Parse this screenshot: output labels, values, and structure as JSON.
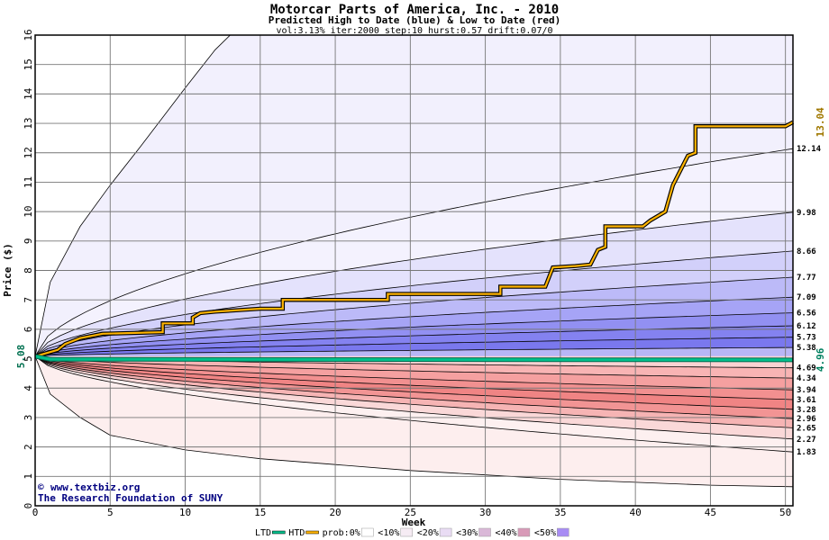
{
  "chart_data": {
    "type": "area",
    "title": "Motorcar Parts of America, Inc. - 2010",
    "subtitle": "Predicted High to Date (blue) &  Low to Date (red)",
    "params": "vol:3.13% iter:2000 step:10 hurst:0.57 drift:0.07/0",
    "xlabel": "Week",
    "ylabel": "Price ($)",
    "xlim": [
      0,
      50.5
    ],
    "ylim": [
      0,
      16
    ],
    "xticks": [
      0,
      5,
      10,
      15,
      20,
      25,
      30,
      35,
      40,
      45,
      50
    ],
    "yticks": [
      0,
      1,
      2,
      3,
      4,
      5,
      6,
      7,
      8,
      9,
      10,
      11,
      12,
      13,
      14,
      15,
      16
    ],
    "grid": true,
    "start_price": 5.08,
    "start_label": "5.08",
    "ltd_end_label": "4.96",
    "htd_end_label": "13.04",
    "right_labels": [
      "12.14",
      "9.98",
      "8.66",
      "7.77",
      "7.09",
      "6.56",
      "6.12",
      "5.73",
      "5.38",
      "4.69",
      "4.34",
      "3.94",
      "3.61",
      "3.28",
      "2.96",
      "2.65",
      "2.27",
      "1.83"
    ],
    "high_bands": [
      {
        "end": 12.14,
        "outer": true
      },
      {
        "end": 9.98
      },
      {
        "end": 8.66
      },
      {
        "end": 7.77
      },
      {
        "end": 7.09
      },
      {
        "end": 6.56
      },
      {
        "end": 6.12
      },
      {
        "end": 5.73
      },
      {
        "end": 5.38
      }
    ],
    "low_bands": [
      {
        "end": 4.69
      },
      {
        "end": 4.34
      },
      {
        "end": 3.94
      },
      {
        "end": 3.61
      },
      {
        "end": 3.28
      },
      {
        "end": 2.96
      },
      {
        "end": 2.65
      },
      {
        "end": 2.27
      },
      {
        "end": 1.83
      }
    ],
    "extreme_high": [
      [
        0,
        5.08
      ],
      [
        1,
        7.6
      ],
      [
        3,
        9.5
      ],
      [
        5,
        10.9
      ],
      [
        7,
        12.2
      ],
      [
        10,
        14.2
      ],
      [
        12,
        15.5
      ],
      [
        13,
        16
      ]
    ],
    "extreme_low": [
      [
        0,
        5.08
      ],
      [
        1,
        3.8
      ],
      [
        3,
        3.0
      ],
      [
        5,
        2.4
      ],
      [
        10,
        1.9
      ],
      [
        15,
        1.6
      ],
      [
        20,
        1.4
      ],
      [
        25,
        1.2
      ],
      [
        30,
        1.05
      ],
      [
        35,
        0.9
      ],
      [
        40,
        0.8
      ],
      [
        45,
        0.7
      ],
      [
        50.5,
        0.65
      ]
    ],
    "series": [
      {
        "name": "HTD",
        "color": "#ffb400",
        "points": [
          [
            0,
            5.08
          ],
          [
            1.5,
            5.3
          ],
          [
            2,
            5.5
          ],
          [
            3,
            5.7
          ],
          [
            4.5,
            5.85
          ],
          [
            8.5,
            5.9
          ],
          [
            8.5,
            6.2
          ],
          [
            10.5,
            6.2
          ],
          [
            10.5,
            6.4
          ],
          [
            11,
            6.55
          ],
          [
            12,
            6.6
          ],
          [
            15,
            6.7
          ],
          [
            16.5,
            6.7
          ],
          [
            16.5,
            7.0
          ],
          [
            23.5,
            7.0
          ],
          [
            23.5,
            7.2
          ],
          [
            31,
            7.2
          ],
          [
            31,
            7.45
          ],
          [
            34,
            7.45
          ],
          [
            34.5,
            8.1
          ],
          [
            36,
            8.15
          ],
          [
            37,
            8.2
          ],
          [
            37.5,
            8.7
          ],
          [
            38,
            8.8
          ],
          [
            38,
            9.5
          ],
          [
            40.5,
            9.5
          ],
          [
            41,
            9.7
          ],
          [
            42,
            10.0
          ],
          [
            42.5,
            10.9
          ],
          [
            43.5,
            11.9
          ],
          [
            44,
            12.0
          ],
          [
            44,
            12.9
          ],
          [
            50,
            12.9
          ],
          [
            50.5,
            13.04
          ]
        ]
      },
      {
        "name": "LTD",
        "color": "#00c08c",
        "points": [
          [
            0,
            5.08
          ],
          [
            1,
            4.98
          ],
          [
            50.5,
            4.96
          ]
        ]
      }
    ],
    "legend": {
      "placement": "bottom",
      "items": [
        {
          "label": "LTD",
          "color": "#00c08c",
          "kind": "line"
        },
        {
          "label": "HTD",
          "color": "#ffb400",
          "kind": "line"
        },
        {
          "label": "prob:0%",
          "color": "#ffffff",
          "kind": "swatch"
        },
        {
          "label": "<10%",
          "color": "#f6ecf4",
          "kind": "swatch"
        },
        {
          "label": "<20%",
          "color": "#e9dcf4",
          "kind": "swatch"
        },
        {
          "label": "<30%",
          "color": "#dab8d8",
          "kind": "swatch"
        },
        {
          "label": "<40%",
          "color": "#d89ab8",
          "kind": "swatch"
        },
        {
          "label": "<50%",
          "color": "#a88cf4",
          "kind": "swatch"
        }
      ]
    },
    "colors": {
      "high_band": [
        "#f4f2fe",
        "#e4e2fc",
        "#d2d0fa",
        "#bcbaf8",
        "#a6a4f6",
        "#9290f2",
        "#8482f0",
        "#7a78ee",
        "#b8b6f6"
      ],
      "low_band": [
        "#fbd2d2",
        "#f8b4b4",
        "#f5a0a0",
        "#f29090",
        "#f08484",
        "#f29494",
        "#f6b4b4",
        "#fad8d8",
        "#fdf0f0"
      ],
      "extreme_low_band": "#fdeeee",
      "outer": "#f2f0fd"
    }
  },
  "credits": {
    "line1": "www.textbiz.org",
    "line2": "The Research Foundation of SUNY",
    "copyright_mark": "©"
  }
}
